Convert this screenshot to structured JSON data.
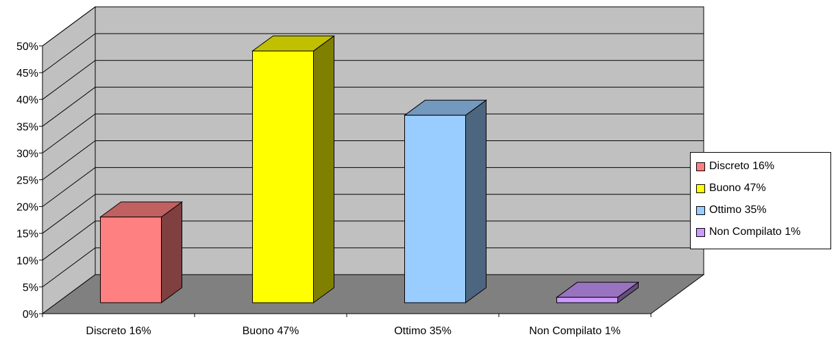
{
  "chart_data": {
    "type": "bar",
    "categories": [
      "Discreto 16%",
      "Buono 47%",
      "Ottimo 35%",
      "Non Compilato 1%"
    ],
    "values": [
      16,
      47,
      35,
      1
    ],
    "ylim": [
      0,
      50
    ],
    "yticks": [
      "0%",
      "5%",
      "10%",
      "15%",
      "20%",
      "25%",
      "30%",
      "35%",
      "40%",
      "45%",
      "50%"
    ],
    "grid": true,
    "three_d": true,
    "legend_position": "right",
    "legend": [
      "Discreto 16%",
      "Buono 47%",
      "Ottimo 35%",
      "Non Compilato 1%"
    ],
    "colors": {
      "front": [
        "#ff8080",
        "#ffff00",
        "#99ccff",
        "#cc99ff"
      ],
      "top": [
        "#c06060",
        "#c0c000",
        "#7399bf",
        "#9973bf"
      ],
      "side": [
        "#804040",
        "#808000",
        "#4d6680",
        "#664d80"
      ],
      "wall": "#c0c0c0",
      "floor": "#808080"
    }
  }
}
